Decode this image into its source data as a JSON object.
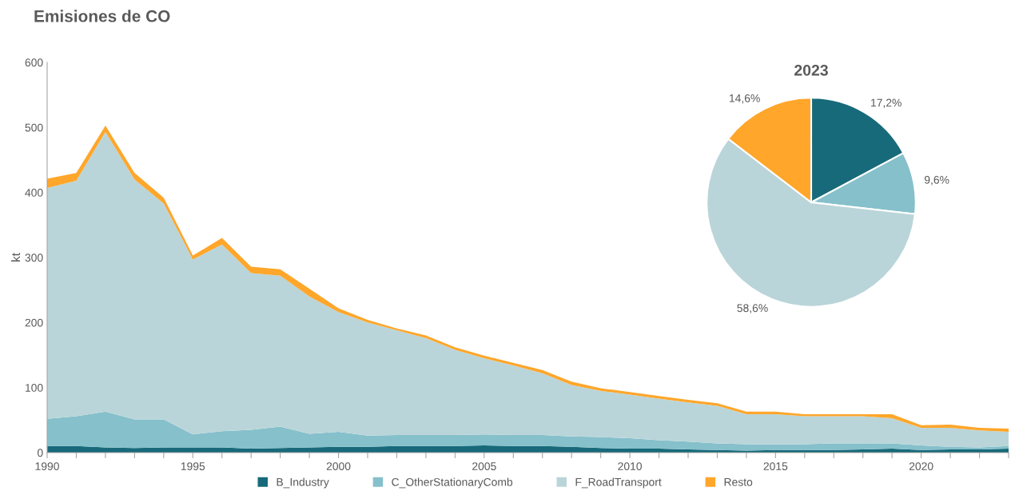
{
  "chart_data": [
    {
      "type": "area",
      "title": "Emisiones de CO",
      "ylabel": "kt",
      "stacked": true,
      "legend": "bottom",
      "x": [
        1990,
        1991,
        1992,
        1993,
        1994,
        1995,
        1996,
        1997,
        1998,
        1999,
        2000,
        2001,
        2002,
        2003,
        2004,
        2005,
        2006,
        2007,
        2008,
        2009,
        2010,
        2011,
        2012,
        2013,
        2014,
        2015,
        2016,
        2017,
        2018,
        2019,
        2020,
        2021,
        2022,
        2023
      ],
      "series": [
        {
          "name": "B_Industry",
          "color": "#176a7a",
          "values": [
            10,
            10,
            8,
            7,
            8,
            8,
            8,
            6,
            7,
            8,
            9,
            9,
            10,
            10,
            10,
            11,
            10,
            10,
            9,
            7,
            6,
            6,
            5,
            4,
            3,
            4,
            4,
            4,
            5,
            6,
            4,
            5,
            5,
            6
          ]
        },
        {
          "name": "C_OtherStationaryComb",
          "color": "#85c0cb",
          "values": [
            42,
            46,
            55,
            44,
            43,
            20,
            25,
            29,
            33,
            21,
            23,
            17,
            17,
            17,
            17,
            17,
            17,
            17,
            16,
            17,
            16,
            13,
            12,
            10,
            10,
            9,
            9,
            10,
            9,
            8,
            7,
            4,
            3,
            4
          ]
        },
        {
          "name": "F_RoadTransport",
          "color": "#bad5d9",
          "values": [
            355,
            362,
            430,
            369,
            332,
            269,
            287,
            241,
            232,
            211,
            184,
            174,
            161,
            149,
            131,
            117,
            107,
            95,
            79,
            71,
            67,
            64,
            60,
            58,
            46,
            46,
            43,
            42,
            42,
            39,
            27,
            29,
            26,
            22
          ]
        },
        {
          "name": "Resto",
          "color": "#ffa62b",
          "values": [
            14,
            12,
            10,
            10,
            9,
            6,
            10,
            10,
            10,
            12,
            6,
            4,
            3,
            4,
            4,
            4,
            4,
            5,
            5,
            4,
            4,
            4,
            4,
            4,
            4,
            4,
            3,
            3,
            3,
            6,
            4,
            5,
            4,
            5
          ]
        }
      ],
      "xlim": [
        1990,
        2023
      ],
      "xticks": [
        1990,
        {
          "value": 1991,
          "label": null
        },
        {
          "value": 1992,
          "label": null
        },
        {
          "value": 1993,
          "label": null
        },
        {
          "value": 1994,
          "label": null
        },
        1995,
        {
          "value": 1996,
          "label": null
        },
        {
          "value": 1997,
          "label": null
        },
        {
          "value": 1998,
          "label": null
        },
        {
          "value": 1999,
          "label": null
        },
        2000,
        {
          "value": 2001,
          "label": null
        },
        {
          "value": 2002,
          "label": null
        },
        {
          "value": 2003,
          "label": null
        },
        {
          "value": 2004,
          "label": null
        },
        2005,
        {
          "value": 2006,
          "label": null
        },
        {
          "value": 2007,
          "label": null
        },
        {
          "value": 2008,
          "label": null
        },
        {
          "value": 2009,
          "label": null
        },
        2010,
        {
          "value": 2011,
          "label": null
        },
        {
          "value": 2012,
          "label": null
        },
        {
          "value": 2013,
          "label": null
        },
        {
          "value": 2014,
          "label": null
        },
        2015,
        {
          "value": 2016,
          "label": null
        },
        {
          "value": 2017,
          "label": null
        },
        {
          "value": 2018,
          "label": null
        },
        {
          "value": 2019,
          "label": null
        },
        2020,
        {
          "value": 2021,
          "label": null
        },
        {
          "value": 2022,
          "label": null
        },
        {
          "value": 2023,
          "label": null
        }
      ],
      "ylim": [
        0,
        600
      ],
      "yticks": [
        0,
        100,
        200,
        300,
        400,
        500,
        600
      ]
    },
    {
      "type": "pie",
      "title": "2023",
      "categories": [
        null,
        null,
        null,
        null
      ],
      "values": [
        17.2,
        9.6,
        58.6,
        14.6
      ],
      "colors": [
        "#176a7a",
        "#85c0cb",
        "#bad5d9",
        "#ffa62b"
      ],
      "value_labels": [
        "17,2%",
        "9,6%",
        "58,6%",
        "14,6%"
      ]
    }
  ]
}
